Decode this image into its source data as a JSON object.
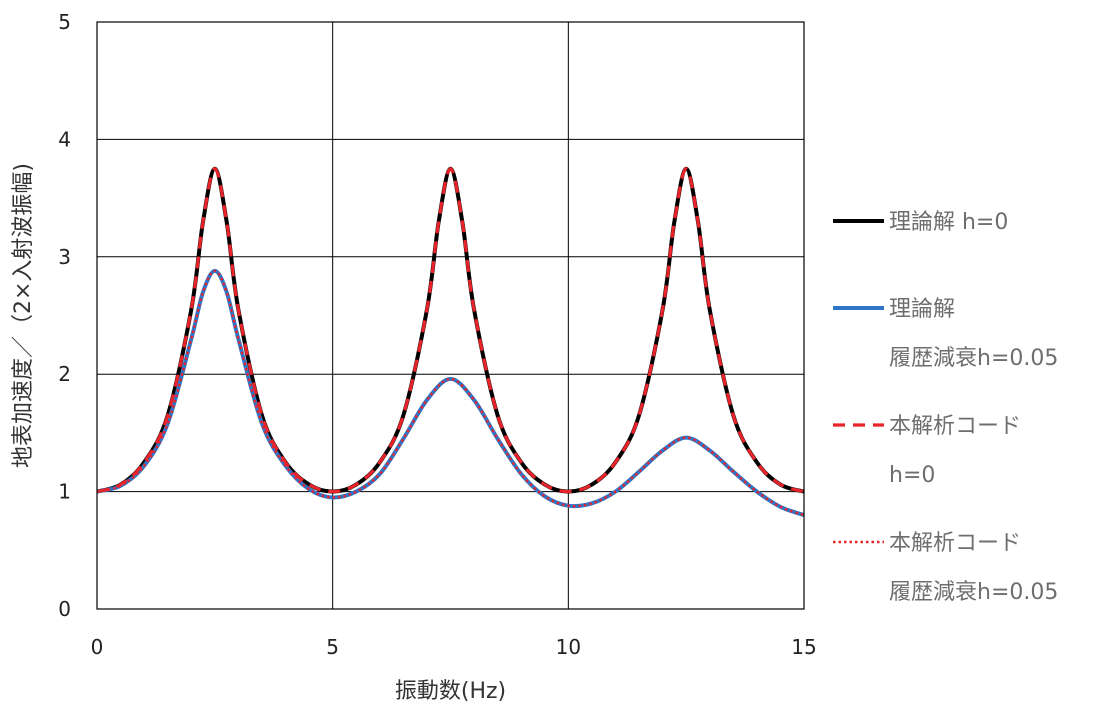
{
  "chart_data": {
    "type": "line",
    "title": "",
    "xlabel": "振動数(Hz)",
    "ylabel": "地表加速度／（2×入射波振幅)",
    "xlim": [
      0,
      15
    ],
    "ylim": [
      0,
      5
    ],
    "x_ticks": [
      0,
      5,
      10,
      15
    ],
    "y_ticks": [
      0,
      1,
      2,
      3,
      4,
      5
    ],
    "grid": true,
    "legend_position": "right",
    "series": [
      {
        "name": "理論解 h=0",
        "name_lines": [
          "理論解 h=0"
        ],
        "color": "#000000",
        "style": "solid",
        "x": [
          0,
          0.5,
          1.0,
          1.5,
          2.0,
          2.25,
          2.5,
          2.75,
          3.0,
          3.5,
          4.0,
          4.5,
          5.0,
          5.5,
          6.0,
          6.5,
          7.0,
          7.25,
          7.5,
          7.75,
          8.0,
          8.5,
          9.0,
          9.5,
          10.0,
          10.5,
          11.0,
          11.5,
          12.0,
          12.25,
          12.5,
          12.75,
          13.0,
          13.5,
          14.0,
          14.5,
          15.0
        ],
        "y": [
          1.0,
          1.06,
          1.25,
          1.65,
          2.55,
          3.3,
          3.75,
          3.3,
          2.55,
          1.65,
          1.25,
          1.06,
          1.0,
          1.06,
          1.25,
          1.65,
          2.55,
          3.3,
          3.75,
          3.3,
          2.55,
          1.65,
          1.25,
          1.06,
          1.0,
          1.06,
          1.25,
          1.65,
          2.55,
          3.3,
          3.75,
          3.3,
          2.55,
          1.65,
          1.25,
          1.06,
          1.0
        ]
      },
      {
        "name": "理論解 履歴減衰h=0.05",
        "name_lines": [
          "理論解",
          "履歴減衰h=0.05"
        ],
        "color": "#2e75c8",
        "style": "solid",
        "x": [
          0,
          0.5,
          1.0,
          1.5,
          2.0,
          2.25,
          2.5,
          2.75,
          3.0,
          3.5,
          4.0,
          4.5,
          5.0,
          5.5,
          6.0,
          6.5,
          7.0,
          7.5,
          8.0,
          8.5,
          9.0,
          9.5,
          10.0,
          10.5,
          11.0,
          11.5,
          12.0,
          12.5,
          13.0,
          13.5,
          14.0,
          14.5,
          15.0
        ],
        "y": [
          1.0,
          1.05,
          1.22,
          1.58,
          2.3,
          2.7,
          2.88,
          2.7,
          2.3,
          1.58,
          1.22,
          1.02,
          0.95,
          1.0,
          1.15,
          1.45,
          1.78,
          1.96,
          1.78,
          1.45,
          1.15,
          0.96,
          0.88,
          0.9,
          1.0,
          1.17,
          1.35,
          1.46,
          1.35,
          1.17,
          1.0,
          0.87,
          0.8
        ]
      },
      {
        "name": "本解析コード h=0",
        "name_lines": [
          "本解析コード",
          "h=0"
        ],
        "color": "#e8242a",
        "style": "dashed",
        "x": [
          0,
          0.5,
          1.0,
          1.5,
          2.0,
          2.25,
          2.5,
          2.75,
          3.0,
          3.5,
          4.0,
          4.5,
          5.0,
          5.5,
          6.0,
          6.5,
          7.0,
          7.25,
          7.5,
          7.75,
          8.0,
          8.5,
          9.0,
          9.5,
          10.0,
          10.5,
          11.0,
          11.5,
          12.0,
          12.25,
          12.5,
          12.75,
          13.0,
          13.5,
          14.0,
          14.5,
          15.0
        ],
        "y": [
          1.0,
          1.06,
          1.25,
          1.65,
          2.55,
          3.3,
          3.75,
          3.3,
          2.55,
          1.65,
          1.25,
          1.06,
          1.0,
          1.06,
          1.25,
          1.65,
          2.55,
          3.3,
          3.75,
          3.3,
          2.55,
          1.65,
          1.25,
          1.06,
          1.0,
          1.06,
          1.25,
          1.65,
          2.55,
          3.3,
          3.75,
          3.3,
          2.55,
          1.65,
          1.25,
          1.06,
          1.0
        ]
      },
      {
        "name": "本解析コード 履歴減衰h=0.05",
        "name_lines": [
          "本解析コード",
          "履歴減衰h=0.05"
        ],
        "color": "#e8242a",
        "style": "dotted",
        "x": [
          0,
          0.5,
          1.0,
          1.5,
          2.0,
          2.25,
          2.5,
          2.75,
          3.0,
          3.5,
          4.0,
          4.5,
          5.0,
          5.5,
          6.0,
          6.5,
          7.0,
          7.5,
          8.0,
          8.5,
          9.0,
          9.5,
          10.0,
          10.5,
          11.0,
          11.5,
          12.0,
          12.5,
          13.0,
          13.5,
          14.0,
          14.5,
          15.0
        ],
        "y": [
          1.0,
          1.05,
          1.22,
          1.58,
          2.3,
          2.7,
          2.88,
          2.7,
          2.3,
          1.58,
          1.22,
          1.02,
          0.95,
          1.0,
          1.15,
          1.45,
          1.78,
          1.96,
          1.78,
          1.45,
          1.15,
          0.96,
          0.88,
          0.9,
          1.0,
          1.17,
          1.35,
          1.46,
          1.35,
          1.17,
          1.0,
          0.87,
          0.8
        ]
      }
    ]
  }
}
